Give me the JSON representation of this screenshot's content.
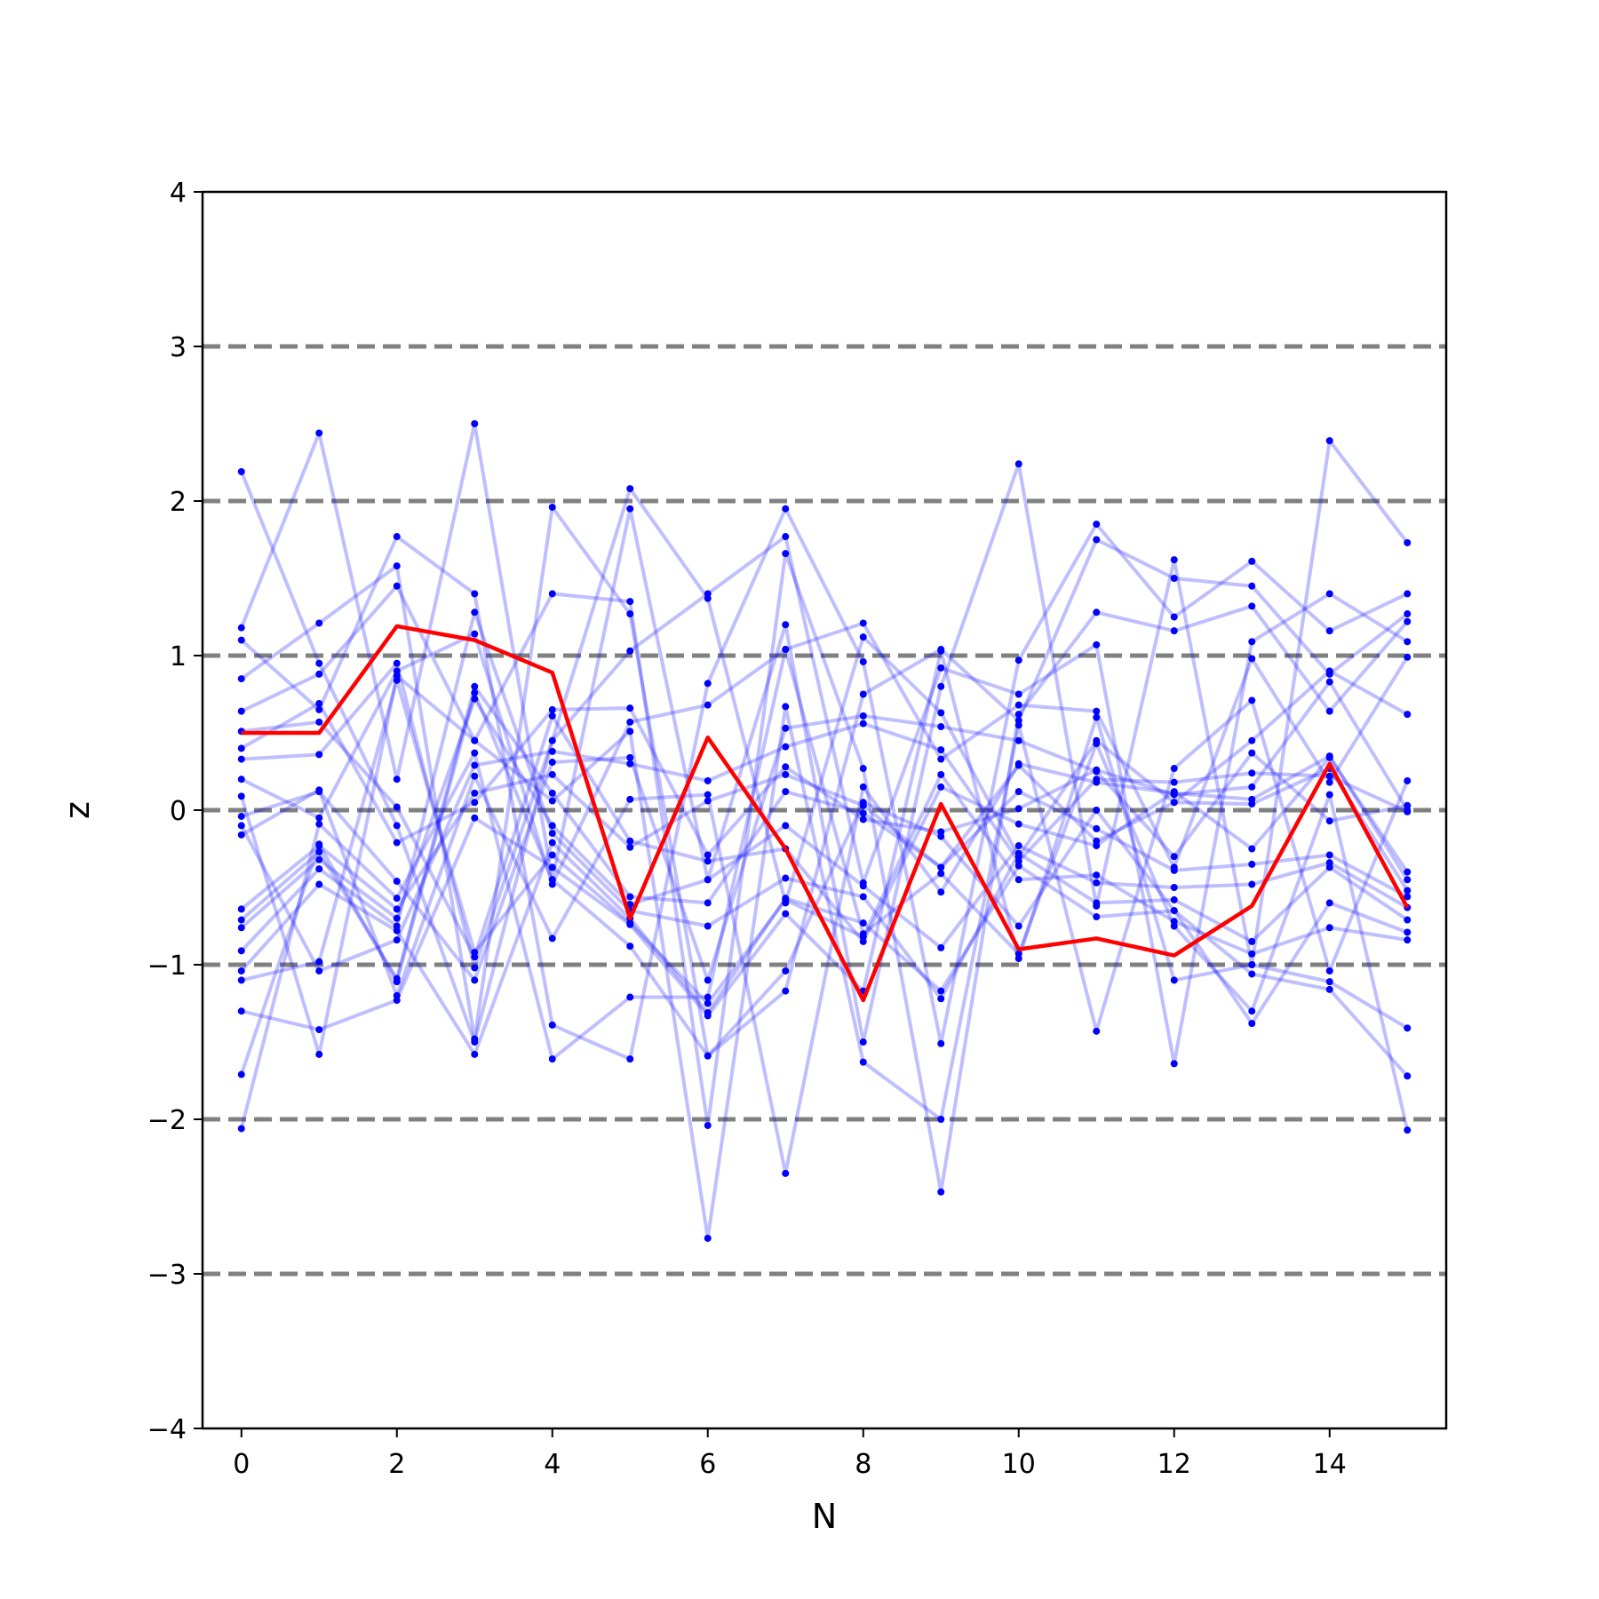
{
  "chart_data": {
    "type": "line",
    "xlabel": "N",
    "ylabel": "z",
    "xlim": [
      -0.5,
      15.5
    ],
    "ylim": [
      -4,
      4
    ],
    "xticks": [
      0,
      2,
      4,
      6,
      8,
      10,
      12,
      14
    ],
    "yticks": [
      4,
      3,
      2,
      1,
      0,
      -1,
      -2,
      -3,
      -4
    ],
    "ytick_labels": [
      "4",
      "3",
      "2",
      "1",
      "0",
      "−1",
      "−2",
      "−3",
      "−4"
    ],
    "reference_lines": [
      -3,
      -2,
      -1,
      0,
      1,
      2,
      3
    ],
    "grid": false,
    "colors": {
      "background_series": "#0000ff",
      "highlight_series": "#ff0000",
      "reference_line": "#808080"
    },
    "x": [
      0,
      1,
      2,
      3,
      4,
      5,
      6,
      7,
      8,
      9,
      10,
      11,
      12,
      13,
      14,
      15
    ],
    "background_series": [
      [
        2.19,
        0.95,
        -0.1,
        -1.5,
        0.45,
        2.08,
        1.37,
        -0.6,
        1.12,
        0.63,
        -0.3,
        0.45,
        0.05,
        0.45,
        0.9,
        0.62
      ],
      [
        1.18,
        2.44,
        0.2,
        2.5,
        -0.45,
        1.95,
        -0.45,
        1.2,
        -1.5,
        0.8,
        2.24,
        -0.62,
        1.62,
        -1.0,
        2.39,
        1.73
      ],
      [
        1.1,
        0.65,
        1.77,
        1.4,
        -1.39,
        -1.61,
        0.82,
        1.95,
        0.96,
        -1.51,
        0.97,
        1.85,
        1.25,
        1.61,
        1.16,
        1.4
      ],
      [
        0.85,
        1.21,
        1.58,
        -1.48,
        1.96,
        1.27,
        -1.59,
        -1.17,
        0.75,
        1.04,
        0.58,
        1.75,
        1.5,
        1.45,
        0.88,
        1.27
      ],
      [
        0.64,
        0.88,
        1.45,
        0.45,
        1.4,
        1.35,
        -2.04,
        1.66,
        0.27,
        -2.47,
        0.62,
        1.28,
        1.16,
        1.32,
        0.64,
        1.22
      ],
      [
        0.33,
        0.36,
        0.95,
        -1.02,
        0.45,
        1.03,
        1.4,
        1.77,
        -0.47,
        0.92,
        0.75,
        1.07,
        -1.64,
        1.09,
        1.4,
        1.09
      ],
      [
        0.2,
        -0.05,
        0.9,
        1.14,
        -0.48,
        0.57,
        0.68,
        1.04,
        1.21,
        0.33,
        0.68,
        0.64,
        -0.37,
        0.98,
        0.18,
        0.99
      ],
      [
        0.09,
        -1.58,
        0.87,
        0.45,
        0.06,
        0.51,
        -2.77,
        0.67,
        -1.63,
        -2.0,
        0.55,
        -1.43,
        0.27,
        0.71,
        -1.04,
        0.19
      ],
      [
        -0.04,
        0.12,
        -0.46,
        -1.1,
        0.31,
        0.34,
        -1.1,
        0.53,
        0.61,
        0.54,
        0.45,
        0.25,
        -0.3,
        0.37,
        -0.07,
        0.03
      ],
      [
        -0.1,
        -1.04,
        -0.84,
        0.29,
        0.38,
        0.3,
        0.19,
        0.41,
        0.56,
        0.39,
        -0.33,
        0.2,
        0.18,
        0.24,
        0.22,
        -0.01
      ],
      [
        -0.16,
        0.13,
        -1.2,
        0.22,
        -0.83,
        0.07,
        0.1,
        -2.35,
        0.15,
        -0.53,
        0.3,
        0.18,
        0.11,
        0.07,
        0.35,
        -0.45
      ],
      [
        -0.64,
        -0.23,
        -0.64,
        0.11,
        0.23,
        -0.24,
        0.06,
        0.23,
        0.03,
        -0.37,
        0.29,
        -0.2,
        0.05,
        0.04,
        0.27,
        -0.52
      ],
      [
        -0.71,
        -0.27,
        -1.09,
        0.8,
        0.11,
        -0.56,
        -0.6,
        0.12,
        -0.02,
        -0.37,
        0.12,
        -0.12,
        -0.39,
        -0.35,
        -0.29,
        -0.56
      ],
      [
        -0.76,
        -0.32,
        -0.7,
        0.72,
        -0.1,
        -0.61,
        -0.45,
        -0.1,
        -0.49,
        -0.89,
        -0.23,
        -0.47,
        -0.5,
        -0.48,
        -0.34,
        -0.63
      ],
      [
        -0.91,
        -0.38,
        -0.75,
        1.28,
        -0.15,
        -0.65,
        -0.75,
        -0.44,
        -0.56,
        -1.22,
        -0.28,
        -0.6,
        -0.58,
        -0.85,
        -0.37,
        -0.71
      ],
      [
        -1.04,
        -0.48,
        -0.78,
        -1.58,
        -0.21,
        -0.7,
        -1.31,
        -0.57,
        -0.73,
        -1.17,
        -0.36,
        -0.69,
        -0.65,
        -1.38,
        -0.6,
        -0.79
      ],
      [
        -1.1,
        -0.98,
        0.84,
        -0.92,
        -0.29,
        -0.73,
        -1.25,
        -0.58,
        -0.82,
        0.23,
        -0.45,
        -0.42,
        -0.72,
        -0.93,
        -0.76,
        -0.84
      ],
      [
        -1.3,
        -1.42,
        -1.23,
        -0.05,
        -0.37,
        -0.74,
        -1.33,
        -0.67,
        -1.17,
        1.03,
        -0.96,
        0.6,
        -1.1,
        -1.0,
        -1.11,
        -1.41
      ],
      [
        -1.71,
        -0.22,
        -1.11,
        0.76,
        -0.45,
        -0.88,
        -1.59,
        -1.04,
        0.05,
        -0.17,
        -0.75,
        0.0,
        -0.65,
        -1.06,
        -1.16,
        -1.72
      ],
      [
        -2.06,
        -0.09,
        -0.57,
        0.37,
        -1.61,
        -1.21,
        -1.21,
        1.04,
        -0.8,
        -0.41,
        -0.93,
        0.43,
        -0.75,
        -1.3,
        0.1,
        -2.07
      ],
      [
        0.4,
        0.69,
        -0.21,
        0.05,
        0.65,
        0.66,
        -0.29,
        0.28,
        -0.06,
        -0.14,
        0.01,
        0.26,
        0.1,
        0.15,
        0.83,
        0.0
      ],
      [
        0.51,
        0.57,
        0.02,
        -0.95,
        0.61,
        -0.2,
        -0.33,
        -0.25,
        -0.85,
        0.15,
        -0.09,
        -0.23,
        0.12,
        -0.25,
        0.34,
        -0.4
      ]
    ],
    "highlight_series": {
      "values": [
        0.5,
        0.5,
        1.19,
        1.1,
        0.89,
        -0.7,
        0.47,
        -0.25,
        -1.23,
        0.04,
        -0.9,
        -0.83,
        -0.94,
        -0.62,
        0.3,
        -0.63
      ]
    }
  }
}
